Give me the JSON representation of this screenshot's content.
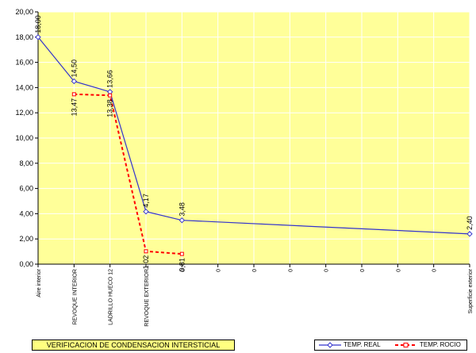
{
  "caption": "VERIFICACION DE CONDENSACION INTERSTICIAL",
  "colors": {
    "plot_bg": "#ffff99",
    "caption_bg": "#ffff80",
    "real": "#3333cc",
    "rocio": "#ff0000",
    "grid": "#ffffff",
    "axis": "#000000"
  },
  "chart_data": {
    "type": "line",
    "title": "",
    "xlabel": "",
    "ylabel": "",
    "ylim": [
      0,
      20
    ],
    "y_ticks": [
      "0,00",
      "2,00",
      "4,00",
      "6,00",
      "8,00",
      "10,00",
      "12,00",
      "14,00",
      "16,00",
      "18,00",
      "20,00"
    ],
    "grid": true,
    "legend_position": "bottom-right",
    "categories": [
      "Aire interior",
      "REVOQUE INTERIOR",
      "LADRILLO HUECO 12",
      "REVOQUE EXTERIOR",
      "0",
      "0",
      "0",
      "0",
      "0",
      "0",
      "0",
      "0",
      "Superficie exterior"
    ],
    "series": [
      {
        "name": "TEMP. REAL",
        "x": [
          0,
          1,
          2,
          3,
          4,
          12
        ],
        "values": [
          18.0,
          14.5,
          13.66,
          4.17,
          3.48,
          2.4
        ],
        "labels": [
          "18,00",
          "14,50",
          "13,66",
          "4,17",
          "3,48",
          "2,40"
        ]
      },
      {
        "name": "TEMP. ROCIO",
        "x": [
          1,
          2,
          3,
          4
        ],
        "values": [
          13.47,
          13.38,
          1.02,
          0.81
        ],
        "labels": [
          "13,47",
          "13,38",
          "1,02",
          "0,81"
        ]
      }
    ]
  }
}
